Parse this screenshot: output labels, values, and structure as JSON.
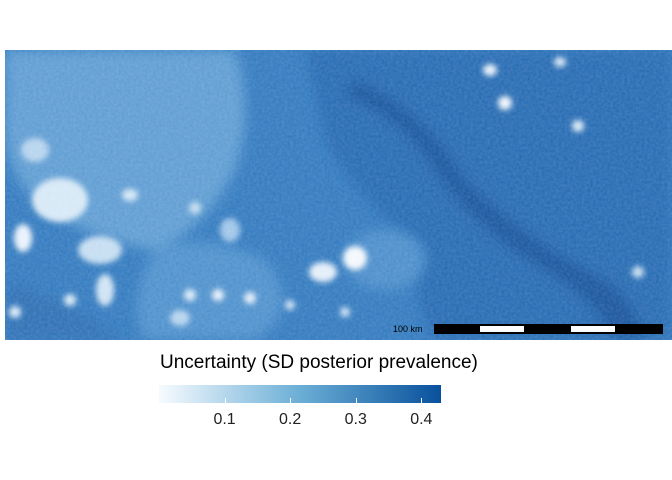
{
  "map": {
    "variable": "SD posterior prevalence",
    "color_scale": {
      "low": "#f7fbff",
      "mid": "#6baed6",
      "high": "#08519c"
    },
    "scale_bar": {
      "label": "100 km"
    }
  },
  "legend": {
    "title": "Uncertainty (SD posterior prevalence)",
    "range": [
      0.0,
      0.43
    ],
    "ticks": [
      {
        "value": 0.1,
        "label": "0.1"
      },
      {
        "value": 0.2,
        "label": "0.2"
      },
      {
        "value": 0.3,
        "label": "0.3"
      },
      {
        "value": 0.4,
        "label": "0.4"
      }
    ]
  }
}
